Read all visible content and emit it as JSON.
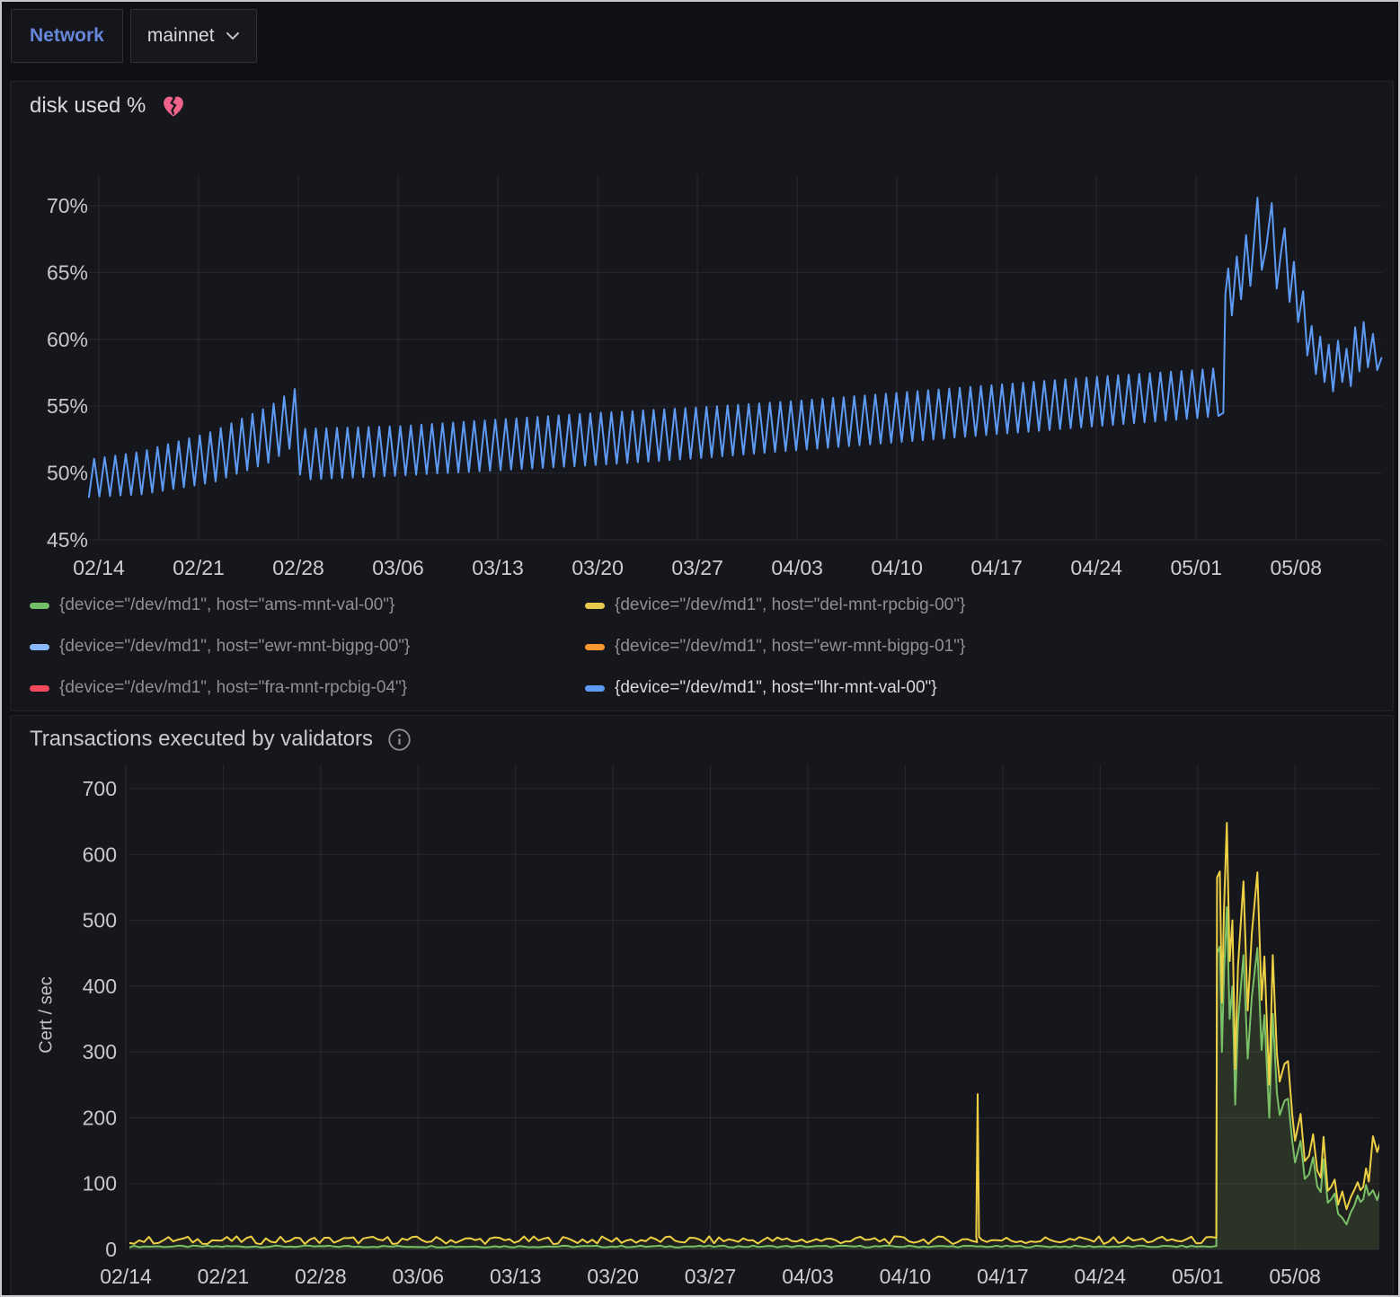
{
  "topbar": {
    "network_label": "Network",
    "network_value": "mainnet"
  },
  "colors": {
    "page_bg": "#101116",
    "panel_bg": "#16171d",
    "grid": "rgba(204,204,220,0.10)",
    "tick_text": "#c7c8cd",
    "chart1_line": "#5e9bf5",
    "chart2_yellow": "#edd043",
    "chart2_green": "#73bf69",
    "alert_heart": "#f0648c"
  },
  "panel1": {
    "title": "disk used %",
    "alert_icon": "broken-heart-icon",
    "legend": [
      {
        "label": "{device=\"/dev/md1\", host=\"ams-mnt-val-00\"}",
        "color": "#73bf69",
        "highlighted": false
      },
      {
        "label": "{device=\"/dev/md1\", host=\"del-mnt-rpcbig-00\"}",
        "color": "#e7c94c",
        "highlighted": false
      },
      {
        "label": "{device=\"/dev/md1\", host=\"ewr-mnt-bigpg-00\"}",
        "color": "#8ab8ff",
        "highlighted": false
      },
      {
        "label": "{device=\"/dev/md1\", host=\"ewr-mnt-bigpg-01\"}",
        "color": "#ff9830",
        "highlighted": false
      },
      {
        "label": "{device=\"/dev/md1\", host=\"fra-mnt-rpcbig-04\"}",
        "color": "#f2495c",
        "highlighted": false
      },
      {
        "label": "{device=\"/dev/md1\", host=\"lhr-mnt-val-00\"}",
        "color": "#5e9bf5",
        "highlighted": true
      }
    ],
    "chart_data": {
      "type": "line",
      "title": "disk used %",
      "unit": "percent",
      "x_tick_labels": [
        "02/14",
        "02/21",
        "02/28",
        "03/06",
        "03/13",
        "03/20",
        "03/27",
        "04/03",
        "04/10",
        "04/17",
        "04/24",
        "05/01",
        "05/08"
      ],
      "x_tick_days": [
        0,
        7,
        14,
        21,
        28,
        35,
        42,
        49,
        56,
        63,
        70,
        77,
        84
      ],
      "y_ticks": [
        45,
        50,
        55,
        60,
        65,
        70
      ],
      "ylim": [
        45,
        70
      ],
      "xlim_days": [
        -0.7,
        90
      ],
      "grid": true,
      "legend_position": "bottom",
      "series": [
        {
          "name": "{device=\"/dev/md1\", host=\"lhr-mnt-val-00\"}",
          "color": "#5e9bf5",
          "shape": "daily sawtooth oscillation rising slowly, sharp surge after 05/03 peaking 70.6%, then decaying oscillation",
          "teeth_per_day": 1.35,
          "sawtooth_envelope_day_trough_peak": [
            [
              -0.7,
              48.2,
              51.0
            ],
            [
              3,
              48.4,
              51.6
            ],
            [
              8,
              49.3,
              53.1
            ],
            [
              12,
              50.8,
              55.0
            ],
            [
              13.9,
              52.2,
              56.4
            ],
            [
              14.15,
              49.5,
              53.3
            ],
            [
              21,
              49.8,
              53.5
            ],
            [
              28,
              50.2,
              54.0
            ],
            [
              35,
              50.6,
              54.5
            ],
            [
              42,
              51.1,
              54.9
            ],
            [
              49,
              51.7,
              55.4
            ],
            [
              56,
              52.3,
              56.0
            ],
            [
              63,
              52.9,
              56.6
            ],
            [
              70,
              53.5,
              57.2
            ],
            [
              77,
              54.1,
              57.7
            ],
            [
              78.9,
              54.3,
              57.9
            ]
          ],
          "surge_points_day_value": [
            [
              78.9,
              54.5
            ],
            [
              79.05,
              63.4
            ],
            [
              79.25,
              65.3
            ],
            [
              79.5,
              61.8
            ],
            [
              79.85,
              66.2
            ],
            [
              80.15,
              63.0
            ],
            [
              80.5,
              67.8
            ],
            [
              80.8,
              64.0
            ],
            [
              81.3,
              70.6
            ],
            [
              81.6,
              65.2
            ],
            [
              81.9,
              66.8
            ],
            [
              82.3,
              70.2
            ],
            [
              82.65,
              63.8
            ],
            [
              82.95,
              66.5
            ],
            [
              83.2,
              68.3
            ],
            [
              83.55,
              62.8
            ],
            [
              83.85,
              65.8
            ],
            [
              84.15,
              61.3
            ],
            [
              84.5,
              63.6
            ],
            [
              84.8,
              58.8
            ],
            [
              85.1,
              61.0
            ],
            [
              85.4,
              57.4
            ],
            [
              85.7,
              60.2
            ],
            [
              86.0,
              56.8
            ],
            [
              86.3,
              59.6
            ],
            [
              86.6,
              56.1
            ],
            [
              86.95,
              59.9
            ],
            [
              87.25,
              56.8
            ],
            [
              87.55,
              59.3
            ],
            [
              87.85,
              56.5
            ],
            [
              88.15,
              60.9
            ],
            [
              88.45,
              57.6
            ],
            [
              88.75,
              61.3
            ],
            [
              89.05,
              57.9
            ],
            [
              89.4,
              60.4
            ],
            [
              89.7,
              57.7
            ],
            [
              90.0,
              58.6
            ]
          ]
        }
      ]
    }
  },
  "panel2": {
    "title": "Transactions executed by validators",
    "info_icon": "info-icon",
    "ylabel": "Cert / sec",
    "chart_data": {
      "type": "line",
      "title": "Transactions executed by validators",
      "xlabel": "",
      "ylabel": "Cert / sec",
      "x_tick_labels": [
        "02/14",
        "02/21",
        "02/28",
        "03/06",
        "03/13",
        "03/20",
        "03/27",
        "04/03",
        "04/10",
        "04/17",
        "04/24",
        "05/01",
        "05/08"
      ],
      "x_tick_days": [
        0,
        7,
        14,
        21,
        28,
        35,
        42,
        49,
        56,
        63,
        70,
        77,
        84
      ],
      "y_ticks": [
        0,
        100,
        200,
        300,
        400,
        500,
        600,
        700
      ],
      "ylim": [
        0,
        700
      ],
      "xlim_days": [
        0.26,
        90.3
      ],
      "grid": true,
      "series": [
        {
          "name": "series-green",
          "color": "#73bf69",
          "fill_opacity": 0.12,
          "baseline": {
            "value": 4.5,
            "noise": 1.4,
            "until_day": 78.35
          },
          "surge_points_day_value": [
            [
              78.35,
              5
            ],
            [
              78.4,
              450
            ],
            [
              78.6,
              460
            ],
            [
              78.75,
              300
            ],
            [
              78.9,
              420
            ],
            [
              79.1,
              520
            ],
            [
              79.3,
              350
            ],
            [
              79.5,
              400
            ],
            [
              79.7,
              220
            ],
            [
              79.9,
              345
            ],
            [
              80.3,
              447
            ],
            [
              80.6,
              290
            ],
            [
              80.9,
              384
            ],
            [
              81.3,
              458
            ],
            [
              81.6,
              303
            ],
            [
              81.8,
              356
            ],
            [
              82.15,
              200
            ],
            [
              82.4,
              358
            ],
            [
              82.7,
              238
            ],
            [
              82.9,
              204
            ],
            [
              83.25,
              226
            ],
            [
              83.5,
              229
            ],
            [
              83.8,
              164
            ],
            [
              84.0,
              132
            ],
            [
              84.4,
              165
            ],
            [
              84.7,
              107
            ],
            [
              85.0,
              114
            ],
            [
              85.3,
              140
            ],
            [
              85.6,
              96
            ],
            [
              85.85,
              87
            ],
            [
              86.05,
              137
            ],
            [
              86.35,
              71
            ],
            [
              86.6,
              76
            ],
            [
              86.85,
              85
            ],
            [
              87.1,
              54
            ],
            [
              87.4,
              48
            ],
            [
              87.7,
              38
            ],
            [
              88.0,
              56
            ],
            [
              88.25,
              66
            ],
            [
              88.5,
              82
            ],
            [
              88.7,
              72
            ],
            [
              88.9,
              76
            ],
            [
              89.1,
              98
            ],
            [
              89.3,
              82
            ],
            [
              89.6,
              90
            ],
            [
              89.9,
              75
            ],
            [
              90.1,
              88
            ],
            [
              90.3,
              62
            ]
          ]
        },
        {
          "name": "series-yellow",
          "color": "#edd043",
          "fill_opacity": 0.05,
          "baseline": {
            "value": 14,
            "noise": 6,
            "until_day": 78.35
          },
          "spike_day_value": [
            61.2,
            236
          ],
          "surge_points_day_value": [
            [
              78.35,
              18
            ],
            [
              78.4,
              565
            ],
            [
              78.6,
              574
            ],
            [
              78.75,
              375
            ],
            [
              78.9,
              520
            ],
            [
              79.1,
              648
            ],
            [
              79.3,
              438
            ],
            [
              79.5,
              500
            ],
            [
              79.7,
              274
            ],
            [
              79.9,
              430
            ],
            [
              80.3,
              559
            ],
            [
              80.6,
              363
            ],
            [
              80.9,
              480
            ],
            [
              81.3,
              573
            ],
            [
              81.6,
              379
            ],
            [
              81.8,
              445
            ],
            [
              82.15,
              250
            ],
            [
              82.4,
              447
            ],
            [
              82.7,
              297
            ],
            [
              82.9,
              255
            ],
            [
              83.25,
              282
            ],
            [
              83.5,
              286
            ],
            [
              83.8,
              205
            ],
            [
              84.0,
              165
            ],
            [
              84.4,
              206
            ],
            [
              84.7,
              134
            ],
            [
              85.0,
              142
            ],
            [
              85.3,
              175
            ],
            [
              85.6,
              120
            ],
            [
              85.85,
              109
            ],
            [
              86.05,
              171
            ],
            [
              86.35,
              89
            ],
            [
              86.6,
              95
            ],
            [
              86.85,
              106
            ],
            [
              87.1,
              68
            ],
            [
              87.4,
              88
            ],
            [
              87.7,
              61
            ],
            [
              88.0,
              79
            ],
            [
              88.25,
              90
            ],
            [
              88.5,
              102
            ],
            [
              88.7,
              90
            ],
            [
              88.9,
              95
            ],
            [
              89.1,
              123
            ],
            [
              89.3,
              103
            ],
            [
              89.6,
              172
            ],
            [
              89.9,
              148
            ],
            [
              90.1,
              160
            ],
            [
              90.3,
              120
            ]
          ]
        }
      ]
    }
  }
}
